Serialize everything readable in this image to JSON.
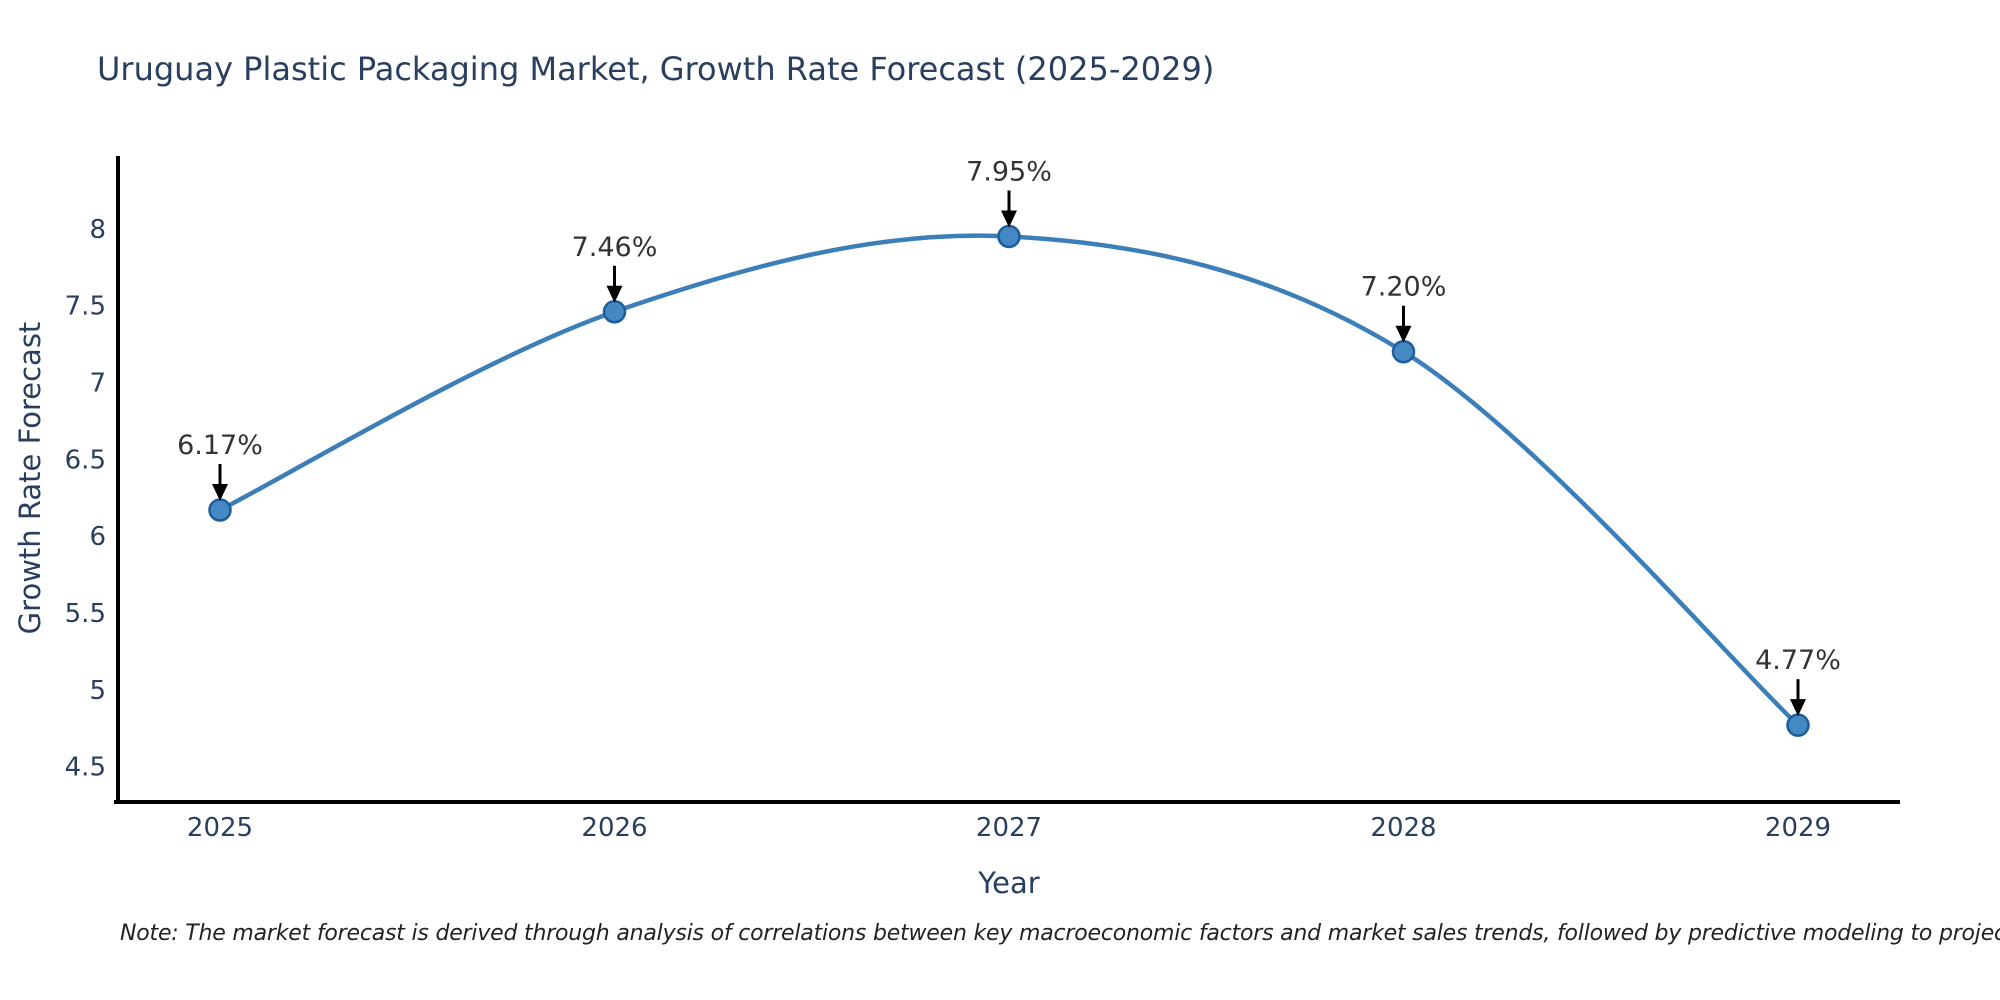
{
  "page": {
    "note": "Note: The market forecast is derived through analysis of correlations between key macroeconomic factors and market sales trends, followed by predictive modeling to project future sales"
  },
  "chart_data": {
    "type": "line",
    "title": "Uruguay Plastic Packaging Market, Growth Rate Forecast (2025-2029)",
    "xlabel": "Year",
    "ylabel": "Growth Rate Forecast",
    "categories": [
      "2025",
      "2026",
      "2027",
      "2028",
      "2029"
    ],
    "series": [
      {
        "name": "Growth Rate Forecast",
        "values": [
          6.17,
          7.46,
          7.95,
          7.2,
          4.77
        ]
      }
    ],
    "point_labels": [
      "6.17%",
      "7.46%",
      "7.95%",
      "7.20%",
      "4.77%"
    ],
    "yticks": [
      4.5,
      5,
      5.5,
      6,
      6.5,
      7,
      7.5,
      8
    ],
    "ylim": [
      4.27,
      8.48
    ],
    "grid": false,
    "legend": "none",
    "line_shape": "spline",
    "annotation_style": "arrow-down",
    "colors": {
      "line": "#3c7fb8",
      "marker_fill": "#4489c4",
      "marker_border": "#1f5c99",
      "annotation_arrow": "#000000",
      "axis_line": "#000000",
      "title_text": "#2a3f5f",
      "annotation_text": "#333333",
      "background": "#ffffff"
    }
  }
}
